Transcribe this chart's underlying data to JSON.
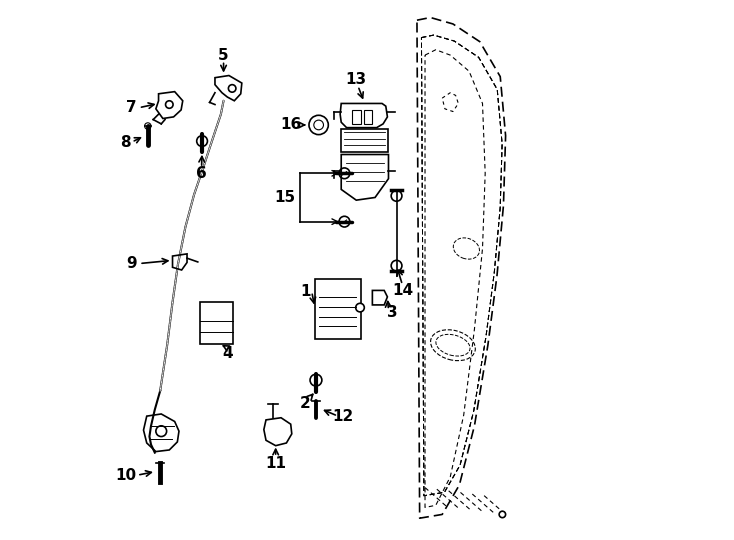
{
  "background_color": "#ffffff",
  "line_color": "#000000",
  "fig_width": 7.34,
  "fig_height": 5.4,
  "dpi": 100,
  "door_outer": {
    "x": [
      0.605,
      0.638,
      0.695,
      0.738,
      0.755,
      0.752,
      0.74,
      0.718,
      0.685,
      0.65,
      0.605
    ],
    "y": [
      0.965,
      0.97,
      0.955,
      0.895,
      0.76,
      0.6,
      0.45,
      0.28,
      0.13,
      0.06,
      0.04
    ]
  },
  "label_fontsize": 11,
  "arrow_lw": 1.2
}
